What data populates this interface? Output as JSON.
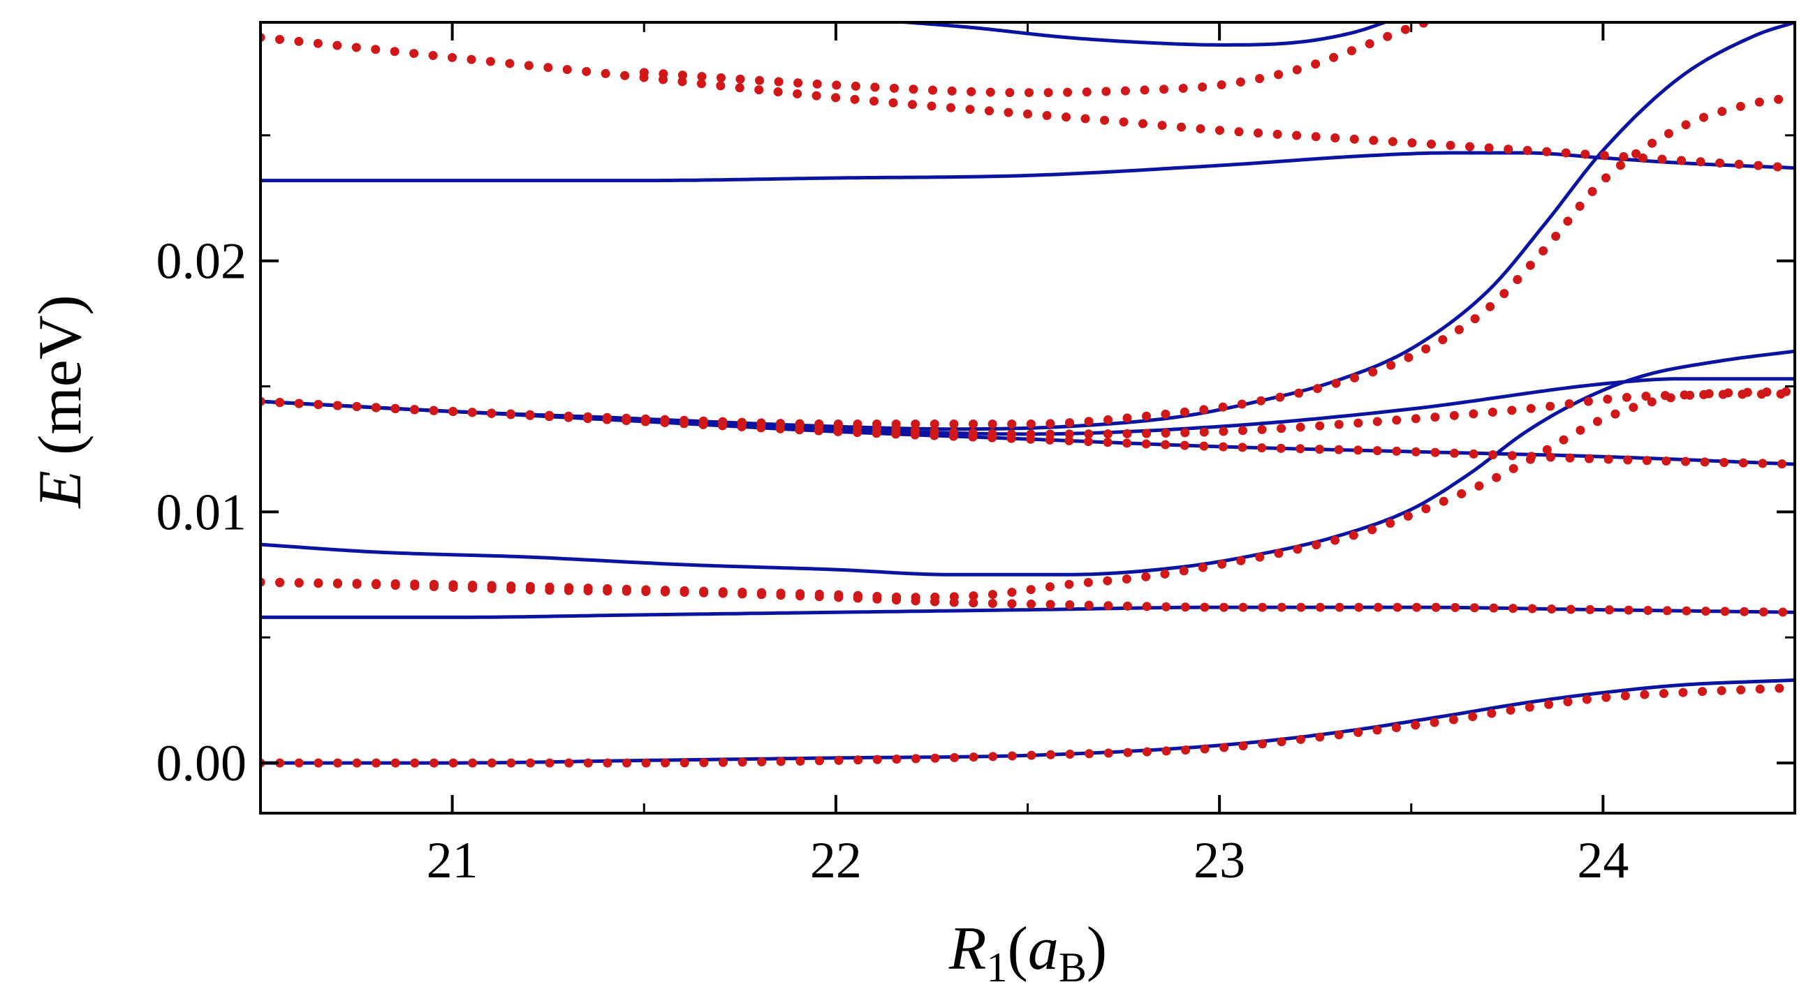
{
  "chart_data": {
    "type": "line",
    "xlabel": {
      "italic": "R",
      "sub": "1",
      "open": "(",
      "italic2": "a",
      "sub2": "B",
      "close": ")"
    },
    "ylabel": {
      "italic": "E",
      "rest": " (meV)"
    },
    "xlim": [
      20.5,
      24.5
    ],
    "ylim": [
      -0.002,
      0.0295
    ],
    "xticks": [
      21,
      22,
      23,
      24
    ],
    "xtick_labels": [
      "21",
      "22",
      "23",
      "24"
    ],
    "xminor": [
      20.5,
      21.5,
      22.5,
      23.5,
      24.5
    ],
    "yticks": [
      0.0,
      0.01,
      0.02
    ],
    "ytick_labels": [
      "0.00",
      "0.01",
      "0.02"
    ],
    "yminor": [
      0.005,
      0.015,
      0.025
    ],
    "colors": {
      "solid": "#0a14a0",
      "dotted": "#d01818"
    },
    "series": [
      {
        "name": "solid-1",
        "style": "solid",
        "x": [
          20.5,
          21,
          21.5,
          22,
          22.5,
          23,
          23.3,
          23.6,
          23.8,
          24,
          24.2,
          24.5
        ],
        "y": [
          0.0,
          0.0,
          0.0001,
          0.0002,
          0.0003,
          0.0007,
          0.0012,
          0.0019,
          0.0024,
          0.0028,
          0.0031,
          0.0033
        ]
      },
      {
        "name": "solid-2",
        "style": "solid",
        "x": [
          20.5,
          21,
          21.5,
          22,
          22.5,
          23,
          23.5,
          24,
          24.5
        ],
        "y": [
          0.0058,
          0.0058,
          0.0059,
          0.006,
          0.0061,
          0.0062,
          0.0062,
          0.0061,
          0.006
        ]
      },
      {
        "name": "solid-3",
        "style": "solid",
        "x": [
          20.5,
          20.8,
          21.2,
          21.6,
          22,
          22.3,
          22.6,
          22.9,
          23.1,
          23.3,
          23.5,
          23.65,
          23.8,
          23.95,
          24.1,
          24.3,
          24.5
        ],
        "y": [
          0.0087,
          0.0084,
          0.0082,
          0.0079,
          0.0077,
          0.0075,
          0.0075,
          0.0078,
          0.0083,
          0.009,
          0.0101,
          0.0115,
          0.0132,
          0.0145,
          0.0154,
          0.016,
          0.0164
        ]
      },
      {
        "name": "solid-4",
        "style": "solid",
        "x": [
          20.5,
          21,
          21.5,
          22,
          22.5,
          23,
          23.5,
          24,
          24.5
        ],
        "y": [
          0.0144,
          0.014,
          0.0136,
          0.0132,
          0.0129,
          0.0126,
          0.0124,
          0.0122,
          0.0119
        ]
      },
      {
        "name": "solid-5",
        "style": "solid",
        "x": [
          20.5,
          21,
          21.5,
          22,
          22.3,
          22.6,
          22.9,
          23.1,
          23.3,
          23.5,
          23.7,
          23.85,
          24,
          24.2,
          24.4,
          24.5
        ],
        "y": [
          0.0144,
          0.014,
          0.0137,
          0.0134,
          0.0133,
          0.0134,
          0.0138,
          0.0144,
          0.0152,
          0.0165,
          0.0188,
          0.0215,
          0.0244,
          0.0273,
          0.029,
          0.0295
        ]
      },
      {
        "name": "solid-6",
        "style": "solid",
        "x": [
          20.5,
          21,
          21.5,
          22,
          22.5,
          23,
          23.5,
          24,
          24.2,
          24.5
        ],
        "y": [
          0.0144,
          0.014,
          0.0137,
          0.0133,
          0.0131,
          0.0134,
          0.0141,
          0.0151,
          0.0153,
          0.0153
        ]
      },
      {
        "name": "solid-7",
        "style": "solid",
        "x": [
          20.5,
          21,
          21.5,
          22,
          22.5,
          23,
          23.4,
          23.6,
          23.8,
          24,
          24.2,
          24.5
        ],
        "y": [
          0.0232,
          0.0232,
          0.0232,
          0.0233,
          0.0234,
          0.0238,
          0.0242,
          0.0243,
          0.0243,
          0.0241,
          0.0239,
          0.0237
        ]
      },
      {
        "name": "solid-8",
        "style": "solid",
        "x": [
          22.1,
          22.35,
          22.6,
          22.8,
          23,
          23.2,
          23.35,
          23.45
        ],
        "y": [
          0.0296,
          0.0293,
          0.0289,
          0.0287,
          0.0286,
          0.0287,
          0.0291,
          0.0296
        ]
      },
      {
        "name": "dotted-1",
        "style": "dotted",
        "x": [
          20.5,
          21,
          21.5,
          22,
          22.5,
          23,
          23.3,
          23.6,
          23.8,
          24,
          24.2,
          24.5
        ],
        "y": [
          0.0,
          0.0,
          0.0,
          0.0001,
          0.0003,
          0.0006,
          0.0011,
          0.0017,
          0.0022,
          0.0026,
          0.0028,
          0.003
        ]
      },
      {
        "name": "dotted-2",
        "style": "dotted",
        "x": [
          20.5,
          21,
          21.5,
          22,
          22.2,
          22.4,
          22.6,
          22.8,
          23,
          23.2,
          23.4,
          23.55,
          23.7,
          23.8,
          24,
          24.2,
          24.5
        ],
        "y": [
          0.0072,
          0.0071,
          0.0069,
          0.0067,
          0.0066,
          0.0067,
          0.0071,
          0.0074,
          0.0079,
          0.0085,
          0.0093,
          0.0102,
          0.0112,
          0.012,
          0.0137,
          0.0146,
          0.0148
        ]
      },
      {
        "name": "dotted-3",
        "style": "dotted",
        "x": [
          20.5,
          20.8,
          21.2,
          21.6,
          22,
          22.3,
          22.6,
          23,
          23.5,
          24,
          24.5
        ],
        "y": [
          0.0072,
          0.0071,
          0.0069,
          0.0068,
          0.0066,
          0.0064,
          0.0063,
          0.0062,
          0.0062,
          0.0061,
          0.006
        ]
      },
      {
        "name": "dotted-4",
        "style": "dotted",
        "x": [
          20.5,
          21,
          21.5,
          22,
          22.5,
          23,
          23.5,
          24,
          24.5
        ],
        "y": [
          0.0144,
          0.014,
          0.0136,
          0.0132,
          0.0129,
          0.0126,
          0.0124,
          0.0121,
          0.0119
        ]
      },
      {
        "name": "dotted-5",
        "style": "dotted",
        "x": [
          20.5,
          21,
          21.5,
          22,
          22.5,
          22.8,
          23.1,
          23.3,
          23.5,
          23.7,
          23.85,
          24,
          24.2,
          24.4,
          24.5
        ],
        "y": [
          0.0144,
          0.014,
          0.0137,
          0.0135,
          0.0135,
          0.0138,
          0.0144,
          0.0151,
          0.0162,
          0.0181,
          0.0205,
          0.0232,
          0.0253,
          0.0263,
          0.0265
        ]
      },
      {
        "name": "dotted-6",
        "style": "dotted",
        "x": [
          20.5,
          21,
          21.5,
          22,
          22.5,
          23,
          23.5,
          23.8,
          24.1,
          24.5
        ],
        "y": [
          0.0144,
          0.014,
          0.0137,
          0.0134,
          0.0131,
          0.0132,
          0.0137,
          0.0141,
          0.0146,
          0.0147
        ]
      },
      {
        "name": "dotted-7",
        "style": "dotted",
        "x": [
          20.5,
          21,
          21.5,
          22,
          22.3,
          22.7,
          23,
          23.3,
          23.6,
          24,
          24.5
        ],
        "y": [
          0.0289,
          0.0281,
          0.0273,
          0.0265,
          0.0261,
          0.0256,
          0.0252,
          0.0249,
          0.0246,
          0.0242,
          0.0237
        ]
      },
      {
        "name": "dotted-8",
        "style": "dotted",
        "x": [
          21.5,
          22,
          22.5,
          22.8,
          23,
          23.2,
          23.35,
          23.5,
          23.58
        ],
        "y": [
          0.0275,
          0.027,
          0.0267,
          0.0268,
          0.027,
          0.0276,
          0.0284,
          0.0293,
          0.0297
        ]
      }
    ]
  }
}
